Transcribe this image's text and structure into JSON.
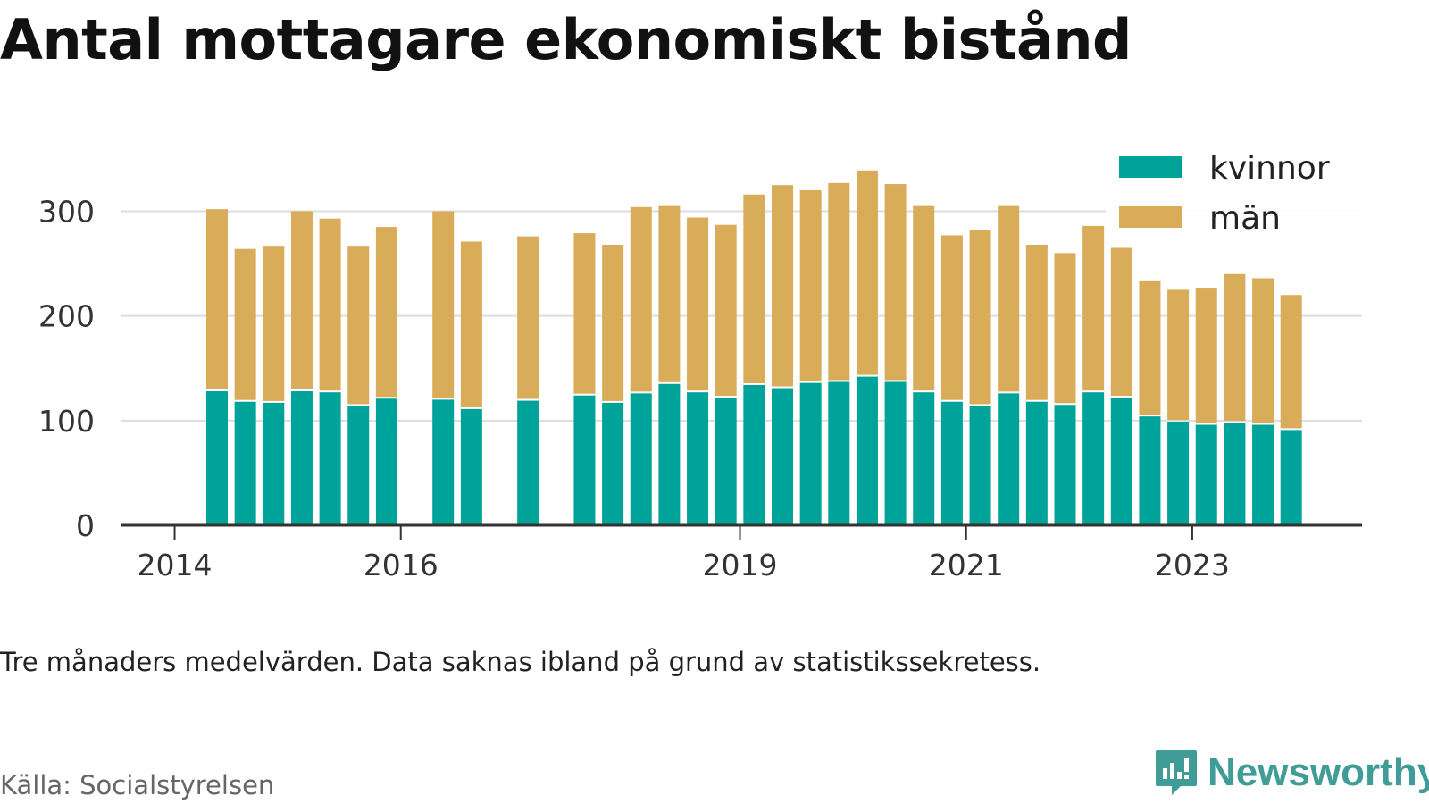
{
  "title": "Antal mottagare ekonomiskt bistånd",
  "note": "Tre månaders medelvärden. Data saknas ibland på grund av statistikssekretess.",
  "source": "Källa: Socialstyrelsen",
  "brand": {
    "name": "Newsworthy",
    "logo_icon": "bar-chart-speech-bubble-icon"
  },
  "colors": {
    "kvinnor": "#00a39a",
    "man": "#d9ac59",
    "grid": "#dddddd",
    "axis": "#333333",
    "brand": "#3f9c96"
  },
  "chart_data": {
    "type": "bar",
    "stacked": true,
    "title": "Antal mottagare ekonomiskt bistånd",
    "xlabel": "",
    "ylabel": "",
    "ylim": [
      0,
      340
    ],
    "yticks": [
      0,
      100,
      200,
      300
    ],
    "xticks": [
      "2014",
      "2016",
      "2019",
      "2021",
      "2023"
    ],
    "grid": true,
    "legend_position": "top-right",
    "periods": [
      "2014 Q2",
      "2014 Q3",
      "2014 Q4",
      "2015 Q1",
      "2015 Q2",
      "2015 Q3",
      "2015 Q4",
      "2016 Q1",
      "2016 Q2",
      "2016 Q3",
      "2016 Q4",
      "2017 Q1",
      "2017 Q2",
      "2017 Q3",
      "2017 Q4",
      "2018 Q1",
      "2018 Q2",
      "2018 Q3",
      "2018 Q4",
      "2019 Q1",
      "2019 Q2",
      "2019 Q3",
      "2019 Q4",
      "2020 Q1",
      "2020 Q2",
      "2020 Q3",
      "2020 Q4",
      "2021 Q1",
      "2021 Q2",
      "2021 Q3",
      "2021 Q4",
      "2022 Q1",
      "2022 Q2",
      "2022 Q3",
      "2022 Q4",
      "2023 Q1",
      "2023 Q2",
      "2023 Q3",
      "2023 Q4"
    ],
    "series": [
      {
        "name": "kvinnor",
        "values": [
          128,
          118,
          117,
          128,
          127,
          114,
          121,
          null,
          120,
          111,
          null,
          119,
          null,
          124,
          117,
          126,
          135,
          127,
          122,
          134,
          131,
          136,
          137,
          142,
          137,
          127,
          118,
          114,
          126,
          118,
          115,
          127,
          122,
          104,
          99,
          96,
          98,
          96,
          91
        ]
      },
      {
        "name": "män",
        "values": [
          174,
          146,
          150,
          172,
          166,
          153,
          164,
          null,
          180,
          160,
          null,
          157,
          null,
          155,
          151,
          178,
          170,
          167,
          165,
          182,
          194,
          184,
          190,
          197,
          189,
          178,
          159,
          168,
          179,
          150,
          145,
          159,
          143,
          130,
          126,
          131,
          142,
          140,
          129
        ]
      }
    ]
  }
}
